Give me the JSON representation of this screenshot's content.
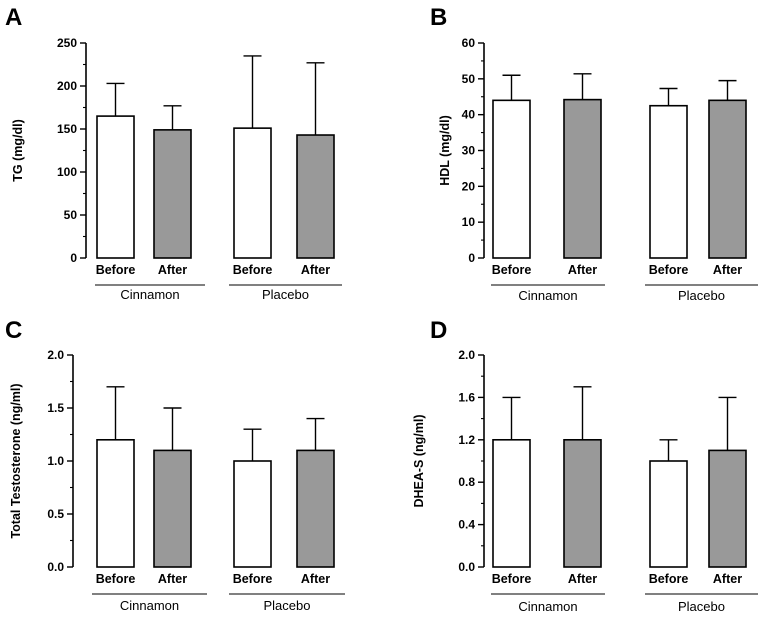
{
  "chart_data": [
    {
      "type": "bar",
      "panel": "A",
      "ylabel": "TG (mg/dl)",
      "ylim": [
        0,
        250
      ],
      "yticks": [
        0,
        50,
        100,
        150,
        200,
        250
      ],
      "categories": [
        "Before",
        "After",
        "Before",
        "After"
      ],
      "groups": [
        "Cinnamon",
        "Placebo"
      ],
      "values": [
        165,
        149,
        151,
        143
      ],
      "errors": [
        38,
        28,
        84,
        84
      ],
      "fills": [
        "#ffffff",
        "#999999",
        "#ffffff",
        "#999999"
      ]
    },
    {
      "type": "bar",
      "panel": "B",
      "ylabel": "HDL (mg/dl)",
      "ylim": [
        0,
        60
      ],
      "yticks": [
        0,
        10,
        20,
        30,
        40,
        50,
        60
      ],
      "categories": [
        "Before",
        "After",
        "Before",
        "After"
      ],
      "groups": [
        "Cinnamon",
        "Placebo"
      ],
      "values": [
        44,
        44.2,
        42.5,
        44
      ],
      "errors": [
        7,
        7.2,
        4.8,
        5.5
      ],
      "fills": [
        "#ffffff",
        "#999999",
        "#ffffff",
        "#999999"
      ]
    },
    {
      "type": "bar",
      "panel": "C",
      "ylabel": "Total Testosterone (ng/ml)",
      "ylim": [
        0,
        2.0
      ],
      "yticks": [
        "0.0",
        "0.5",
        "1.0",
        "1.5",
        "2.0"
      ],
      "categories": [
        "Before",
        "After",
        "Before",
        "After"
      ],
      "groups": [
        "Cinnamon",
        "Placebo"
      ],
      "values": [
        1.2,
        1.1,
        1.0,
        1.1
      ],
      "errors": [
        0.5,
        0.4,
        0.3,
        0.3
      ],
      "fills": [
        "#ffffff",
        "#999999",
        "#ffffff",
        "#999999"
      ]
    },
    {
      "type": "bar",
      "panel": "D",
      "ylabel": "DHEA-S (ng/ml)",
      "ylim": [
        0,
        2.0
      ],
      "yticks": [
        "0.0",
        "0.4",
        "0.8",
        "1.2",
        "1.6",
        "2.0"
      ],
      "categories": [
        "Before",
        "After",
        "Before",
        "After"
      ],
      "groups": [
        "Cinnamon",
        "Placebo"
      ],
      "values": [
        1.2,
        1.2,
        1.0,
        1.1
      ],
      "errors": [
        0.4,
        0.5,
        0.2,
        0.5
      ],
      "fills": [
        "#ffffff",
        "#999999",
        "#ffffff",
        "#999999"
      ]
    }
  ]
}
